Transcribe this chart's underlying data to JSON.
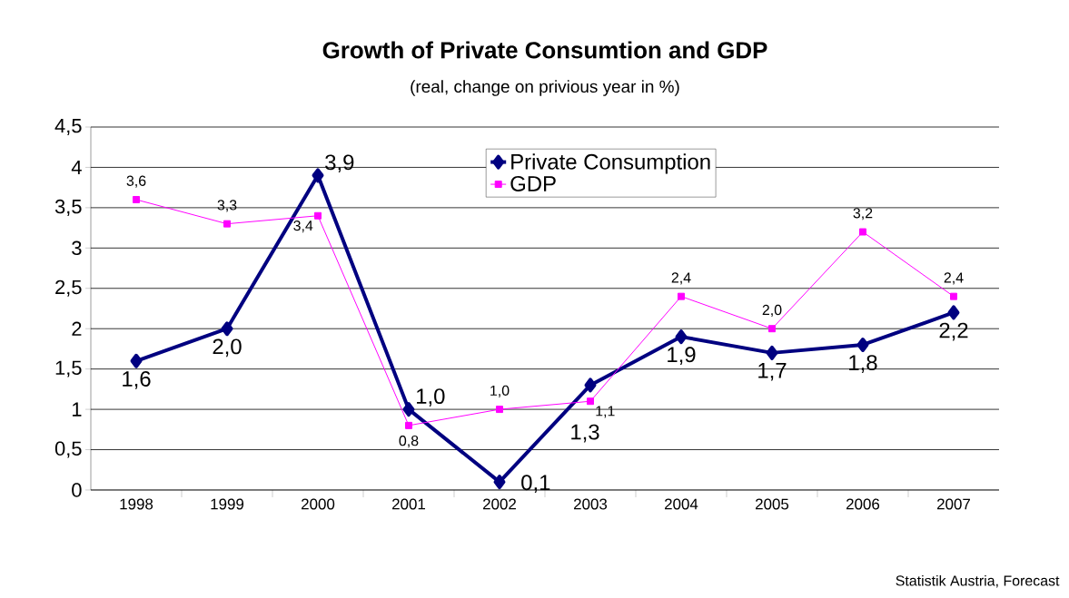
{
  "chart_data": {
    "type": "line",
    "title": "Growth of Private Consumtion and GDP",
    "subtitle": "(real, change on privious year in %)",
    "categories": [
      "1998",
      "1999",
      "2000",
      "2001",
      "2002",
      "2003",
      "2004",
      "2005",
      "2006",
      "2007"
    ],
    "series": [
      {
        "name": "Private Consumption",
        "color": "#000080",
        "marker": "diamond",
        "values": [
          1.6,
          2.0,
          3.9,
          1.0,
          0.1,
          1.3,
          1.9,
          1.7,
          1.8,
          2.2
        ],
        "value_labels": [
          "1,6",
          "2,0",
          "3,9",
          "1,0",
          "0,1",
          "1,3",
          "1,9",
          "1,7",
          "1,8",
          "2,2"
        ]
      },
      {
        "name": "GDP",
        "color": "#ff00ff",
        "marker": "square",
        "values": [
          3.6,
          3.3,
          3.4,
          0.8,
          1.0,
          1.1,
          2.4,
          2.0,
          3.2,
          2.4
        ],
        "value_labels": [
          "3,6",
          "3,3",
          "3,4",
          "0,8",
          "1,0",
          "1,1",
          "2,4",
          "2,0",
          "3,2",
          "2,4"
        ]
      }
    ],
    "ylim": [
      0,
      4.5
    ],
    "yticks": [
      0,
      {
        "value": 0.5,
        "label": "0,5"
      },
      1,
      {
        "value": 1.5,
        "label": "1,5"
      },
      2,
      {
        "value": 2.5,
        "label": "2,5"
      },
      3,
      {
        "value": 3.5,
        "label": "3,5"
      },
      4,
      {
        "value": 4.5,
        "label": "4,5"
      }
    ],
    "grid": "y",
    "legend": "top",
    "line_style": "solid",
    "annotations": [
      "Statistik Austria, Forecast"
    ]
  }
}
